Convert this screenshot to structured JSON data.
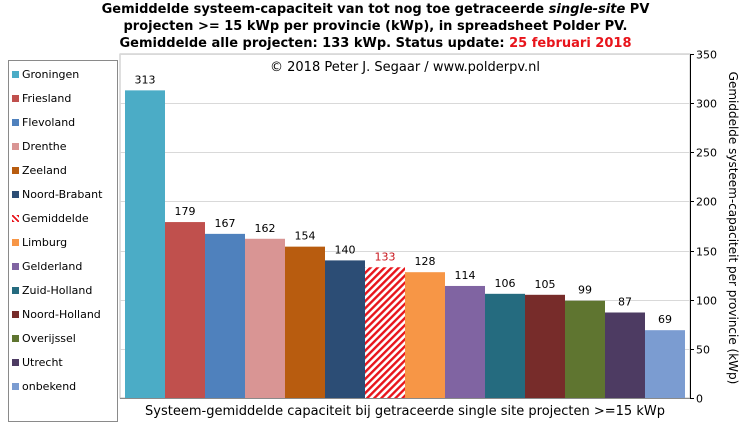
{
  "title": {
    "line1_a": "Gemiddelde systeem-capaciteit van tot nog toe getraceerde ",
    "line1_b": "single-site",
    "line1_c": " PV",
    "line2": "projecten >= 15 kWp per provincie (kWp), in spreadsheet Polder PV.",
    "line3_a": "Gemiddelde alle projecten: 133 kWp. Status update: ",
    "line3_b": "25 februari 2018"
  },
  "copyright": "© 2018 Peter J. Segaar / www.polderpv.nl",
  "colors": {
    "date": "#e8141b",
    "average_label": "#c8141b",
    "grid": "#d9d9d9",
    "axis": "#000000"
  },
  "chart_data": {
    "type": "bar",
    "categories": [
      "Groningen",
      "Friesland",
      "Flevoland",
      "Drenthe",
      "Zeeland",
      "Noord-Brabant",
      "Gemiddelde",
      "Limburg",
      "Gelderland",
      "Zuid-Holland",
      "Noord-Holland",
      "Overijssel",
      "Utrecht",
      "onbekend"
    ],
    "values": [
      313,
      179,
      167,
      162,
      154,
      140,
      133,
      128,
      114,
      106,
      105,
      99,
      87,
      69
    ],
    "colors": [
      "#4bacc6",
      "#c0504d",
      "#4f81bd",
      "#d99594",
      "#b85c0f",
      "#2c4d75",
      "#e8141b",
      "#f79646",
      "#8064a2",
      "#256b7f",
      "#772c2a",
      "#5f7530",
      "#4d3b62",
      "#7b9cd1"
    ],
    "hatched_category": "Gemiddelde",
    "xlabel": "Systeem-gemiddelde capaciteit bij getraceerde single site projecten >=15 kWp",
    "ylabel": "Gemiddelde systeem-capaciteit per provincie (kWp)",
    "ylim": [
      0,
      350
    ],
    "yticks": [
      0,
      50,
      100,
      150,
      200,
      250,
      300,
      350
    ],
    "grid": true,
    "legend_position": "left",
    "y_axis_side": "right"
  }
}
